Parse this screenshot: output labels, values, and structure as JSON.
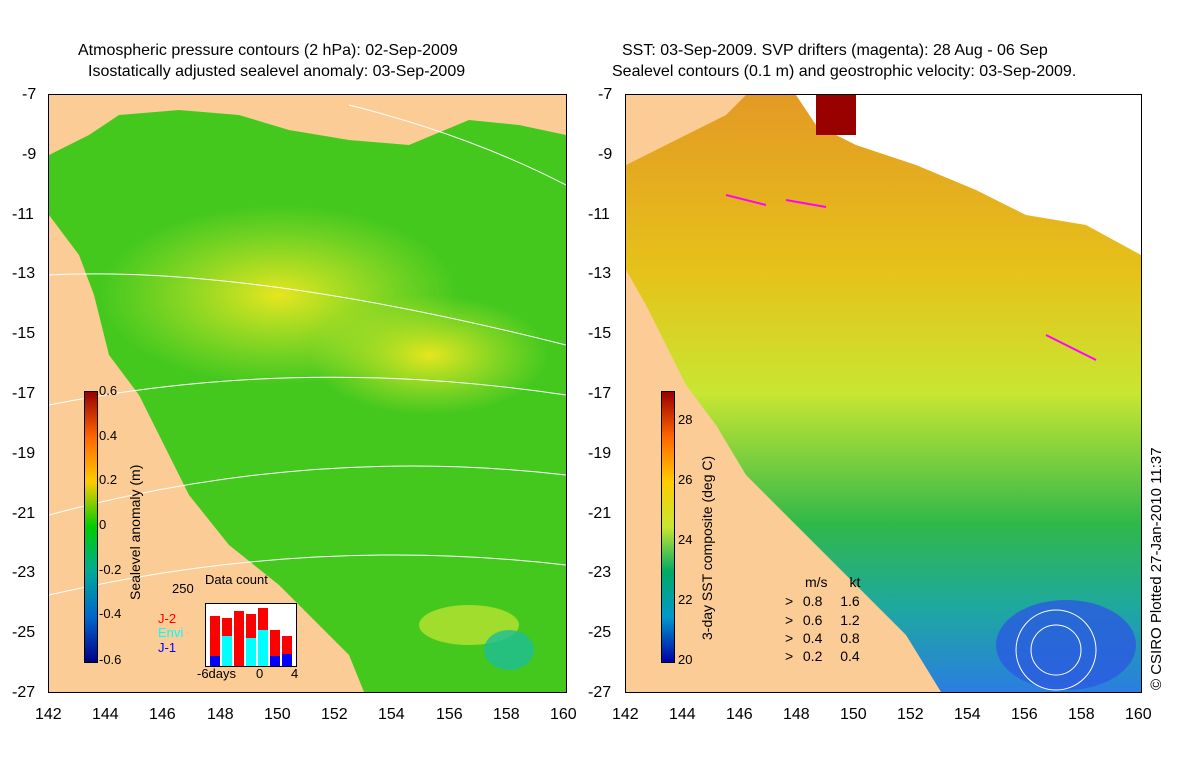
{
  "left_panel": {
    "title_line1": "Atmospheric pressure contours (2 hPa): 02-Sep-2009",
    "title_line2": "Isostatically adjusted sealevel anomaly: 03-Sep-2009",
    "colorbar_label": "Sealevel anomaly (m)",
    "colorbar_ticks": [
      "0.6",
      "0.4",
      "0.2",
      "0",
      "-0.2",
      "-0.4",
      "-0.6"
    ],
    "inset": {
      "title": "Data count",
      "ymax_label": "250",
      "x_labels": [
        "-6days",
        "0",
        "4"
      ],
      "series": [
        {
          "name": "J-2",
          "color": "#ff0000"
        },
        {
          "name": "Envi",
          "color": "#00ffff"
        },
        {
          "name": "J-1",
          "color": "#0000ff"
        }
      ]
    }
  },
  "right_panel": {
    "title_line1": "SST: 03-Sep-2009. SVP drifters (magenta): 28 Aug - 06 Sep",
    "title_line2": "Sealevel contours (0.1 m) and geostrophic velocity: 03-Sep-2009.",
    "colorbar_label": "3-day SST composite (deg C)",
    "colorbar_ticks": [
      "28",
      "26",
      "24",
      "22",
      "20"
    ],
    "velocity_legend": {
      "header_ms": "m/s",
      "header_kt": "kt",
      "rows": [
        {
          "ms": "0.8",
          "kt": "1.6"
        },
        {
          "ms": "0.6",
          "kt": "1.2"
        },
        {
          "ms": "0.4",
          "kt": "0.8"
        },
        {
          "ms": "0.2",
          "kt": "0.4"
        }
      ]
    }
  },
  "axes": {
    "lat_labels": [
      "-7",
      "-9",
      "-11",
      "-13",
      "-15",
      "-17",
      "-19",
      "-21",
      "-23",
      "-25",
      "-27"
    ],
    "lon_labels": [
      "142",
      "144",
      "146",
      "148",
      "150",
      "152",
      "154",
      "156",
      "158",
      "160"
    ]
  },
  "credit": "© CSIRO Plotted 27-Jan-2010 11:37",
  "colors": {
    "land": "#fccc96",
    "ocean_green": "#44c81e",
    "ocean_yellow": "#c8e632",
    "sst_orange": "#e39a24",
    "sst_blue": "#3aa0e0"
  }
}
